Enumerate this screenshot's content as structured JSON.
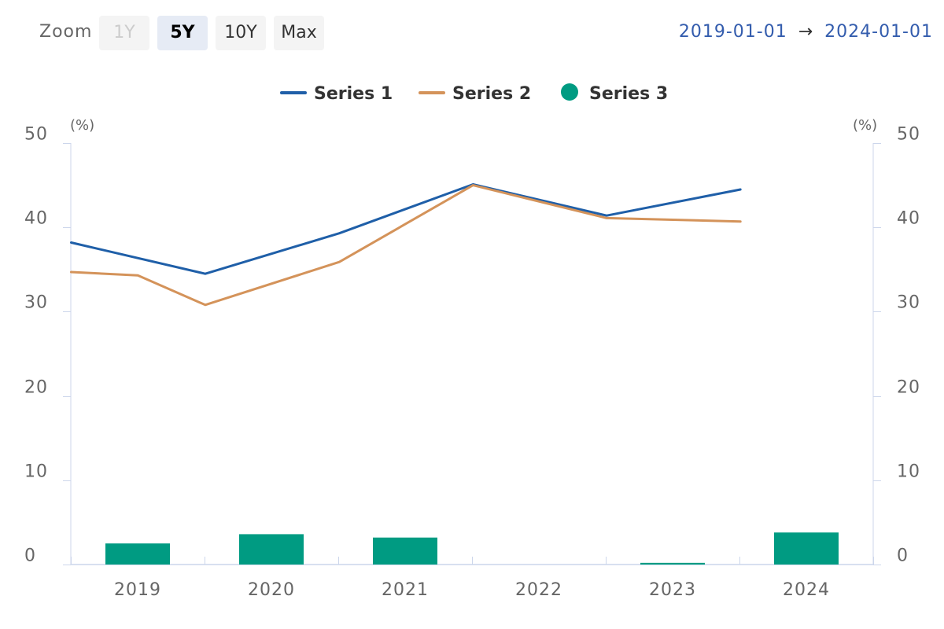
{
  "toolbar": {
    "zoom_label": "Zoom",
    "buttons": [
      {
        "label": "1Y",
        "state": "disabled"
      },
      {
        "label": "5Y",
        "state": "active"
      },
      {
        "label": "10Y",
        "state": "normal"
      },
      {
        "label": "Max",
        "state": "normal"
      }
    ],
    "range_from": "2019-01-01",
    "range_arrow": "→",
    "range_to": "2024-01-01"
  },
  "colors": {
    "series1": "#1f5fa8",
    "series2": "#d4935a",
    "series3": "#009b82",
    "axis": "#ccd6eb",
    "text": "#666666"
  },
  "chart_data": {
    "type": "line",
    "title": "",
    "legend_position": "top-center",
    "grid": false,
    "x": [
      "2019",
      "2020",
      "2021",
      "2022",
      "2023",
      "2024"
    ],
    "x_tick_labels": [
      "2019",
      "2020",
      "2021",
      "2022",
      "2023",
      "2024"
    ],
    "y_left": {
      "unit": "(%)",
      "ticks": [
        0,
        10,
        20,
        30,
        40,
        50
      ],
      "range": [
        0,
        50
      ]
    },
    "y_right": {
      "unit": "(%)",
      "ticks": [
        0,
        10,
        20,
        30,
        40,
        50
      ],
      "range": [
        0,
        50
      ]
    },
    "series": [
      {
        "name": "Series 1",
        "type": "line",
        "points": [
          [
            "2018-12-31",
            38.2
          ],
          [
            "2020-01-01",
            34.5
          ],
          [
            "2021-01-01",
            39.3
          ],
          [
            "2022-01-01",
            45.1
          ],
          [
            "2023-01-01",
            41.4
          ],
          [
            "2024-01-01",
            44.5
          ]
        ]
      },
      {
        "name": "Series 2",
        "type": "line",
        "points": [
          [
            "2018-12-31",
            34.7
          ],
          [
            "2019-07-01",
            34.3
          ],
          [
            "2020-01-01",
            30.8
          ],
          [
            "2021-01-01",
            35.9
          ],
          [
            "2022-01-01",
            45.0
          ],
          [
            "2023-01-01",
            41.1
          ],
          [
            "2024-01-01",
            40.7
          ]
        ]
      },
      {
        "name": "Series 3",
        "type": "bar",
        "values": [
          2.5,
          3.6,
          3.2,
          0,
          0.2,
          3.8
        ]
      }
    ]
  }
}
